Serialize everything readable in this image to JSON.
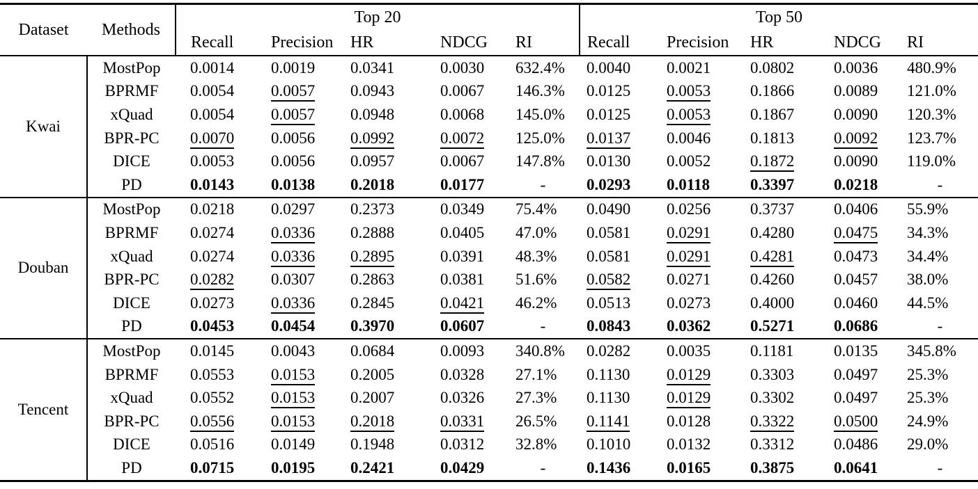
{
  "colors": {
    "background": "#ffffff",
    "text": "#000000",
    "rules": "#000000"
  },
  "header": {
    "dataset_label": "Dataset",
    "methods_label": "Methods",
    "top20_label": "Top 20",
    "top50_label": "Top 50",
    "metrics": [
      "Recall",
      "Precision",
      "HR",
      "NDCG",
      "RI"
    ]
  },
  "sections": [
    {
      "dataset": "Kwai",
      "rows": [
        {
          "method": "MostPop",
          "values": [
            "0.0014",
            "0.0019",
            "0.0341",
            "0.0030",
            "632.4%",
            "0.0040",
            "0.0021",
            "0.0802",
            "0.0036",
            "480.9%"
          ],
          "underline": [],
          "bold": false
        },
        {
          "method": "BPRMF",
          "values": [
            "0.0054",
            "0.0057",
            "0.0943",
            "0.0067",
            "146.3%",
            "0.0125",
            "0.0053",
            "0.1866",
            "0.0089",
            "121.0%"
          ],
          "underline": [
            1,
            6
          ],
          "bold": false
        },
        {
          "method": "xQuad",
          "values": [
            "0.0054",
            "0.0057",
            "0.0948",
            "0.0068",
            "145.0%",
            "0.0125",
            "0.0053",
            "0.1867",
            "0.0090",
            "120.3%"
          ],
          "underline": [
            1,
            6
          ],
          "bold": false
        },
        {
          "method": "BPR-PC",
          "values": [
            "0.0070",
            "0.0056",
            "0.0992",
            "0.0072",
            "125.0%",
            "0.0137",
            "0.0046",
            "0.1813",
            "0.0092",
            "123.7%"
          ],
          "underline": [
            0,
            2,
            3,
            5,
            8
          ],
          "bold": false
        },
        {
          "method": "DICE",
          "values": [
            "0.0053",
            "0.0056",
            "0.0957",
            "0.0067",
            "147.8%",
            "0.0130",
            "0.0052",
            "0.1872",
            "0.0090",
            "119.0%"
          ],
          "underline": [
            7
          ],
          "bold": false
        },
        {
          "method": "PD",
          "values": [
            "0.0143",
            "0.0138",
            "0.2018",
            "0.0177",
            "-",
            "0.0293",
            "0.0118",
            "0.3397",
            "0.0218",
            "-"
          ],
          "underline": [],
          "bold": true
        }
      ]
    },
    {
      "dataset": "Douban",
      "rows": [
        {
          "method": "MostPop",
          "values": [
            "0.0218",
            "0.0297",
            "0.2373",
            "0.0349",
            "75.4%",
            "0.0490",
            "0.0256",
            "0.3737",
            "0.0406",
            "55.9%"
          ],
          "underline": [],
          "bold": false
        },
        {
          "method": "BPRMF",
          "values": [
            "0.0274",
            "0.0336",
            "0.2888",
            "0.0405",
            "47.0%",
            "0.0581",
            "0.0291",
            "0.4280",
            "0.0475",
            "34.3%"
          ],
          "underline": [
            1,
            6,
            8
          ],
          "bold": false
        },
        {
          "method": "xQuad",
          "values": [
            "0.0274",
            "0.0336",
            "0.2895",
            "0.0391",
            "48.3%",
            "0.0581",
            "0.0291",
            "0.4281",
            "0.0473",
            "34.4%"
          ],
          "underline": [
            1,
            2,
            6,
            7
          ],
          "bold": false
        },
        {
          "method": "BPR-PC",
          "values": [
            "0.0282",
            "0.0307",
            "0.2863",
            "0.0381",
            "51.6%",
            "0.0582",
            "0.0271",
            "0.4260",
            "0.0457",
            "38.0%"
          ],
          "underline": [
            0,
            5
          ],
          "bold": false
        },
        {
          "method": "DICE",
          "values": [
            "0.0273",
            "0.0336",
            "0.2845",
            "0.0421",
            "46.2%",
            "0.0513",
            "0.0273",
            "0.4000",
            "0.0460",
            "44.5%"
          ],
          "underline": [
            1,
            3
          ],
          "bold": false
        },
        {
          "method": "PD",
          "values": [
            "0.0453",
            "0.0454",
            "0.3970",
            "0.0607",
            "-",
            "0.0843",
            "0.0362",
            "0.5271",
            "0.0686",
            "-"
          ],
          "underline": [],
          "bold": true
        }
      ]
    },
    {
      "dataset": "Tencent",
      "rows": [
        {
          "method": "MostPop",
          "values": [
            "0.0145",
            "0.0043",
            "0.0684",
            "0.0093",
            "340.8%",
            "0.0282",
            "0.0035",
            "0.1181",
            "0.0135",
            "345.8%"
          ],
          "underline": [],
          "bold": false
        },
        {
          "method": "BPRMF",
          "values": [
            "0.0553",
            "0.0153",
            "0.2005",
            "0.0328",
            "27.1%",
            "0.1130",
            "0.0129",
            "0.3303",
            "0.0497",
            "25.3%"
          ],
          "underline": [
            1,
            6
          ],
          "bold": false
        },
        {
          "method": "xQuad",
          "values": [
            "0.0552",
            "0.0153",
            "0.2007",
            "0.0326",
            "27.3%",
            "0.1130",
            "0.0129",
            "0.3302",
            "0.0497",
            "25.3%"
          ],
          "underline": [
            1,
            6
          ],
          "bold": false
        },
        {
          "method": "BPR-PC",
          "values": [
            "0.0556",
            "0.0153",
            "0.2018",
            "0.0331",
            "26.5%",
            "0.1141",
            "0.0128",
            "0.3322",
            "0.0500",
            "24.9%"
          ],
          "underline": [
            0,
            1,
            2,
            3,
            5,
            7,
            8
          ],
          "bold": false
        },
        {
          "method": "DICE",
          "values": [
            "0.0516",
            "0.0149",
            "0.1948",
            "0.0312",
            "32.8%",
            "0.1010",
            "0.0132",
            "0.3312",
            "0.0486",
            "29.0%"
          ],
          "underline": [],
          "bold": false
        },
        {
          "method": "PD",
          "values": [
            "0.0715",
            "0.0195",
            "0.2421",
            "0.0429",
            "-",
            "0.1436",
            "0.0165",
            "0.3875",
            "0.0641",
            "-"
          ],
          "underline": [],
          "bold": true
        }
      ]
    }
  ]
}
